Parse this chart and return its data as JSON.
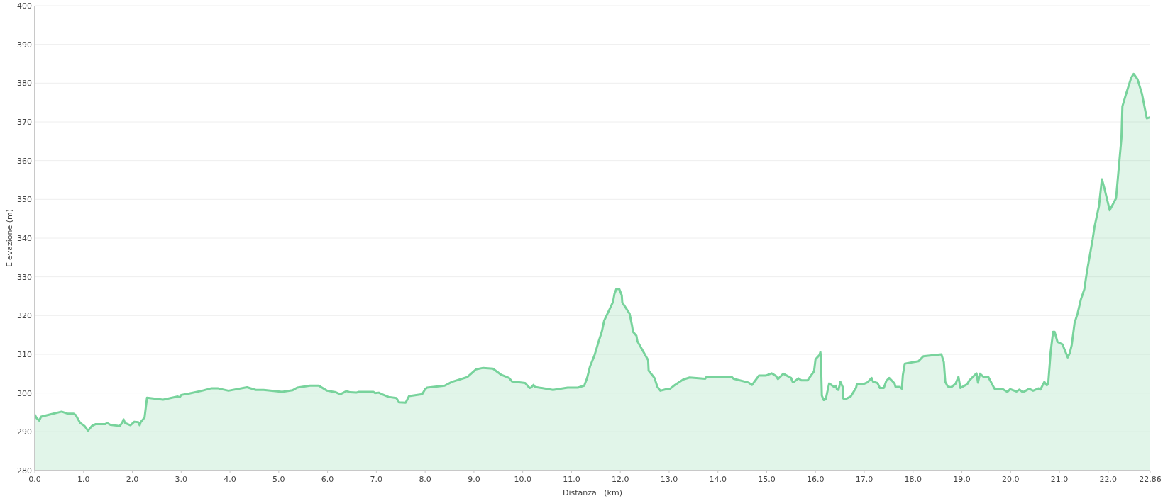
{
  "chart_data": {
    "type": "area",
    "xlabel": "Distanza   (km)",
    "ylabel": "Elevazione (m)",
    "x": [
      0,
      0.04,
      0.09,
      0.13,
      0.32,
      0.55,
      0.67,
      0.79,
      0.84,
      0.93,
      1.02,
      1.09,
      1.17,
      1.25,
      1.45,
      1.48,
      1.55,
      1.74,
      1.79,
      1.82,
      1.85,
      1.96,
      2.04,
      2.12,
      2.15,
      2.17,
      2.25,
      2.3,
      2.63,
      2.93,
      2.97,
      3,
      3.17,
      3.43,
      3.61,
      3.76,
      3.97,
      4.35,
      4.53,
      4.69,
      5.07,
      5.28,
      5.38,
      5.64,
      5.82,
      5.99,
      6.17,
      6.26,
      6.39,
      6.46,
      6.59,
      6.64,
      6.94,
      6.97,
      7.05,
      7.1,
      7.25,
      7.41,
      7.47,
      7.6,
      7.67,
      7.94,
      8,
      8.04,
      8.4,
      8.55,
      8.86,
      9.04,
      9.19,
      9.39,
      9.56,
      9.72,
      9.78,
      10.05,
      10.14,
      10.17,
      10.22,
      10.25,
      10.62,
      10.92,
      11.13,
      11.26,
      11.32,
      11.38,
      11.47,
      11.55,
      11.62,
      11.67,
      11.85,
      11.88,
      11.92,
      11.98,
      12.03,
      12.04,
      12.19,
      12.24,
      12.26,
      12.33,
      12.35,
      12.57,
      12.58,
      12.7,
      12.76,
      12.82,
      12.94,
      13.02,
      13.12,
      13.19,
      13.29,
      13.42,
      13.74,
      13.76,
      13.94,
      14.29,
      14.32,
      14.63,
      14.7,
      14.84,
      14.98,
      15.1,
      15.19,
      15.23,
      15.34,
      15.5,
      15.53,
      15.56,
      15.65,
      15.71,
      15.84,
      15.89,
      15.97,
      16,
      16.08,
      16.1,
      16.11,
      16.13,
      16.17,
      16.21,
      16.28,
      16.39,
      16.42,
      16.44,
      16.47,
      16.51,
      16.56,
      16.57,
      16.61,
      16.72,
      16.83,
      16.85,
      16.98,
      17.07,
      17.15,
      17.18,
      17.27,
      17.32,
      17.4,
      17.45,
      17.51,
      17.62,
      17.64,
      17.72,
      17.77,
      17.79,
      17.83,
      18.11,
      18.21,
      18.58,
      18.63,
      18.66,
      18.71,
      18.78,
      18.87,
      18.93,
      18.97,
      19.11,
      19.15,
      19.3,
      19.33,
      19.37,
      19.44,
      19.54,
      19.67,
      19.83,
      19.93,
      19.99,
      20.12,
      20.18,
      20.25,
      20.38,
      20.46,
      20.57,
      20.61,
      20.69,
      20.74,
      20.77,
      20.82,
      20.87,
      20.9,
      20.96,
      21.06,
      21.17,
      21.21,
      21.25,
      21.31,
      21.37,
      21.44,
      21.51,
      21.56,
      21.68,
      21.72,
      21.81,
      21.87,
      21.92,
      22.03,
      22.16,
      22.27,
      22.29,
      22.36,
      22.47,
      22.52,
      22.6,
      22.69,
      22.79,
      22.86
    ],
    "values": [
      294.4,
      293.5,
      292.9,
      293.9,
      294.5,
      295.2,
      294.7,
      294.7,
      294.3,
      292.3,
      291.5,
      290.3,
      291.5,
      292.0,
      292.0,
      292.3,
      291.8,
      291.5,
      292.3,
      293.2,
      292.3,
      291.7,
      292.6,
      292.5,
      291.7,
      292.5,
      293.7,
      298.8,
      298.3,
      299.1,
      298.9,
      299.5,
      299.9,
      300.6,
      301.2,
      301.2,
      300.6,
      301.5,
      300.8,
      300.8,
      300.3,
      300.7,
      301.4,
      301.9,
      301.9,
      300.6,
      300.2,
      299.7,
      300.5,
      300.2,
      300.1,
      300.3,
      300.3,
      300.0,
      300.1,
      299.8,
      299.0,
      298.7,
      297.6,
      297.5,
      299.2,
      299.7,
      301.0,
      301.4,
      301.9,
      302.9,
      304.1,
      306.1,
      306.5,
      306.3,
      304.7,
      303.9,
      303.0,
      302.6,
      301.3,
      301.4,
      302.1,
      301.6,
      300.8,
      301.4,
      301.4,
      301.9,
      303.9,
      306.9,
      309.7,
      313.1,
      315.8,
      318.7,
      323.5,
      325.6,
      326.9,
      326.8,
      325.2,
      323.4,
      320.5,
      317.4,
      315.8,
      314.8,
      313.4,
      308.5,
      305.8,
      303.9,
      301.6,
      300.6,
      301.0,
      301.1,
      302.1,
      302.7,
      303.5,
      304.0,
      303.7,
      304.1,
      304.1,
      304.1,
      303.7,
      302.7,
      302.1,
      304.5,
      304.5,
      305.1,
      304.4,
      303.6,
      305.0,
      303.9,
      302.9,
      302.9,
      303.8,
      303.3,
      303.3,
      304.2,
      305.6,
      308.7,
      309.8,
      310.6,
      309.6,
      299.3,
      298.2,
      298.4,
      302.5,
      301.5,
      301.9,
      300.9,
      300.8,
      302.9,
      301.5,
      298.6,
      298.4,
      299.1,
      301.3,
      302.4,
      302.3,
      302.8,
      303.9,
      302.9,
      302.6,
      301.3,
      301.3,
      303.1,
      303.9,
      302.5,
      301.6,
      301.6,
      301.1,
      304.6,
      307.6,
      308.2,
      309.5,
      310.0,
      308.0,
      302.9,
      301.7,
      301.5,
      302.4,
      304.2,
      301.3,
      302.3,
      303.2,
      305.1,
      302.7,
      305.0,
      304.2,
      304.2,
      301.1,
      301.1,
      300.3,
      301.0,
      300.4,
      300.9,
      300.2,
      301.1,
      300.6,
      301.2,
      300.9,
      302.9,
      302.0,
      302.5,
      310.7,
      315.8,
      315.8,
      313.2,
      312.6,
      309.2,
      310.3,
      312.3,
      318.1,
      320.5,
      324.2,
      326.8,
      331.1,
      339.7,
      343.0,
      348.3,
      355.2,
      352.9,
      347.2,
      350.3,
      365.8,
      374.0,
      377.0,
      381.4,
      382.4,
      381.0,
      377.3,
      370.9,
      371.2
    ],
    "color": "#78d39c",
    "xlim": [
      0,
      22.86
    ],
    "xticks": [
      {
        "value": 0,
        "label": "0.0"
      },
      {
        "value": 1,
        "label": "1.0"
      },
      {
        "value": 2,
        "label": "2.0"
      },
      {
        "value": 3,
        "label": "3.0"
      },
      {
        "value": 4,
        "label": "4.0"
      },
      {
        "value": 5,
        "label": "5.0"
      },
      {
        "value": 6,
        "label": "6.0"
      },
      {
        "value": 7,
        "label": "7.0"
      },
      {
        "value": 8,
        "label": "8.0"
      },
      {
        "value": 9,
        "label": "9.0"
      },
      {
        "value": 10,
        "label": "10.0"
      },
      {
        "value": 11,
        "label": "11.0"
      },
      {
        "value": 12,
        "label": "12.0"
      },
      {
        "value": 13,
        "label": "13.0"
      },
      {
        "value": 14,
        "label": "14.0"
      },
      {
        "value": 15,
        "label": "15.0"
      },
      {
        "value": 16,
        "label": "16.0"
      },
      {
        "value": 17,
        "label": "17.0"
      },
      {
        "value": 18,
        "label": "18.0"
      },
      {
        "value": 19,
        "label": "19.0"
      },
      {
        "value": 20,
        "label": "20.0"
      },
      {
        "value": 21,
        "label": "21.0"
      },
      {
        "value": 22,
        "label": "22.0"
      },
      22.86
    ],
    "ylim": [
      280,
      400
    ],
    "yticks": [
      280,
      290,
      300,
      310,
      320,
      330,
      340,
      350,
      360,
      370,
      380,
      390,
      400
    ],
    "grid": "y"
  }
}
